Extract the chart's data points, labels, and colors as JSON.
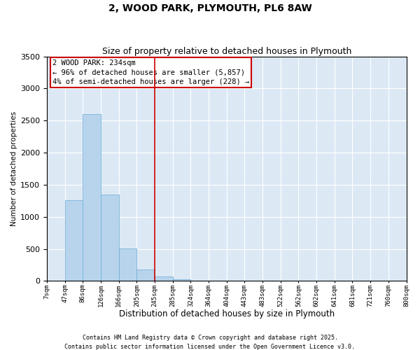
{
  "title": "2, WOOD PARK, PLYMOUTH, PL6 8AW",
  "subtitle": "Size of property relative to detached houses in Plymouth",
  "xlabel": "Distribution of detached houses by size in Plymouth",
  "ylabel": "Number of detached properties",
  "bar_color": "#b8d4ed",
  "bar_edge_color": "#6aaad4",
  "background_color": "#dce9f5",
  "categories": [
    "7sqm",
    "47sqm",
    "86sqm",
    "126sqm",
    "166sqm",
    "205sqm",
    "245sqm",
    "285sqm",
    "324sqm",
    "364sqm",
    "404sqm",
    "443sqm",
    "483sqm",
    "522sqm",
    "562sqm",
    "602sqm",
    "641sqm",
    "681sqm",
    "721sqm",
    "760sqm",
    "800sqm"
  ],
  "bar_values": [
    0,
    1255,
    2600,
    1350,
    505,
    175,
    75,
    25,
    5,
    0,
    0,
    0,
    0,
    0,
    0,
    0,
    0,
    0,
    0,
    0,
    0
  ],
  "ylim": [
    0,
    3500
  ],
  "yticks": [
    0,
    500,
    1000,
    1500,
    2000,
    2500,
    3000,
    3500
  ],
  "vline_color": "#cc0000",
  "annotation_text": "2 WOOD PARK: 234sqm\n← 96% of detached houses are smaller (5,857)\n4% of semi-detached houses are larger (228) →",
  "footer1": "Contains HM Land Registry data © Crown copyright and database right 2025.",
  "footer2": "Contains public sector information licensed under the Open Government Licence v3.0."
}
